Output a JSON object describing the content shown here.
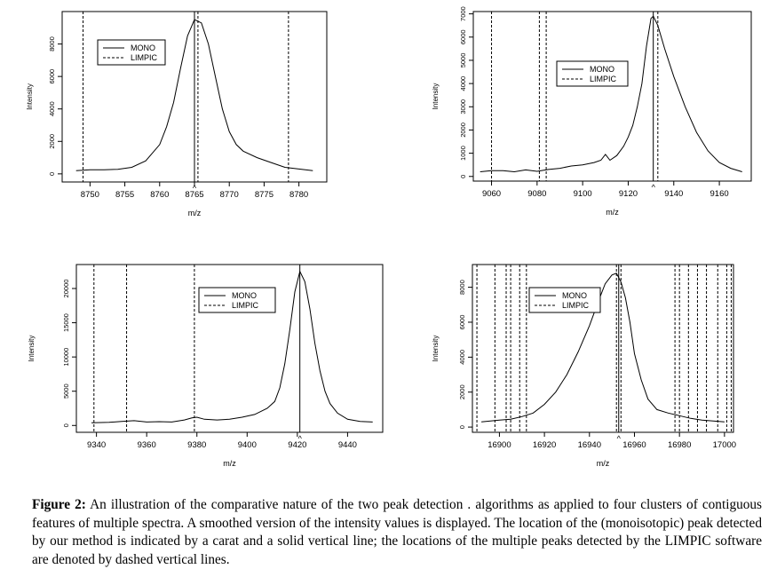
{
  "caption": {
    "label": "Figure 2:",
    "text": "An illustration of the comparative nature of the two peak detection . algorithms as applied to four clusters of contiguous features of multiple spectra. A smoothed version of the intensity values is displayed. The location of the (monoisotopic) peak detected by our method is indicated by a carat and a solid vertical line; the locations of the multiple peaks detected by the LIMPIC software are denoted by dashed vertical lines."
  },
  "chart_data": [
    {
      "type": "line",
      "xlabel": "m/z",
      "ylabel": "Intensity",
      "xlim": [
        8746,
        8784
      ],
      "ylim": [
        -500,
        10000
      ],
      "xticks": [
        8750,
        8755,
        8760,
        8765,
        8770,
        8775,
        8780
      ],
      "yticks": [
        0,
        2000,
        4000,
        6000,
        8000
      ],
      "legend": {
        "position": "top-left",
        "entries": [
          "MONO",
          "LIMPIC"
        ]
      },
      "mono_peak": 8765,
      "limpic_peaks": [
        8749,
        8765.5,
        8778.5
      ],
      "caret_label": "^",
      "series": [
        {
          "name": "MONO",
          "x": [
            8748,
            8750,
            8752,
            8754,
            8756,
            8758,
            8760,
            8761,
            8762,
            8763,
            8764,
            8765,
            8766,
            8767,
            8768,
            8769,
            8770,
            8771,
            8772,
            8774,
            8776,
            8778,
            8780,
            8782
          ],
          "y": [
            200,
            250,
            250,
            280,
            400,
            800,
            1800,
            2900,
            4400,
            6500,
            8500,
            9500,
            9300,
            8000,
            6000,
            4000,
            2600,
            1800,
            1400,
            1000,
            700,
            400,
            300,
            200
          ]
        }
      ]
    },
    {
      "type": "line",
      "xlabel": "m/z",
      "ylabel": "Intensity",
      "xlim": [
        9052,
        9174
      ],
      "ylim": [
        -200,
        7100
      ],
      "xticks": [
        9060,
        9080,
        9100,
        9120,
        9140,
        9160
      ],
      "yticks": [
        0,
        1000,
        2000,
        3000,
        4000,
        5000,
        6000,
        7000
      ],
      "legend": {
        "position": "top-center",
        "entries": [
          "MONO",
          "LIMPIC"
        ]
      },
      "mono_peak": 9131,
      "limpic_peaks": [
        9060,
        9081,
        9084,
        9133
      ],
      "caret_label": "^",
      "series": [
        {
          "name": "MONO",
          "x": [
            9055,
            9060,
            9065,
            9070,
            9075,
            9080,
            9085,
            9090,
            9095,
            9100,
            9105,
            9108,
            9110,
            9112,
            9115,
            9118,
            9120,
            9122,
            9124,
            9126,
            9128,
            9130,
            9131,
            9133,
            9136,
            9140,
            9145,
            9150,
            9155,
            9160,
            9165,
            9170
          ],
          "y": [
            200,
            250,
            250,
            200,
            280,
            220,
            300,
            350,
            450,
            500,
            600,
            700,
            950,
            700,
            900,
            1300,
            1700,
            2200,
            3000,
            4000,
            5600,
            6800,
            6900,
            6500,
            5500,
            4300,
            3000,
            1900,
            1100,
            600,
            350,
            200
          ]
        }
      ]
    },
    {
      "type": "line",
      "xlabel": "m/z",
      "ylabel": "Intensity",
      "xlim": [
        9332,
        9454
      ],
      "ylim": [
        -1000,
        23500
      ],
      "xticks": [
        9340,
        9360,
        9380,
        9400,
        9420,
        9440
      ],
      "yticks": [
        0,
        5000,
        10000,
        15000,
        20000
      ],
      "legend": {
        "position": "top-center",
        "entries": [
          "MONO",
          "LIMPIC"
        ]
      },
      "mono_peak": 9421,
      "limpic_peaks": [
        9339,
        9352,
        9379
      ],
      "caret_label": "^",
      "series": [
        {
          "name": "MONO",
          "x": [
            9338,
            9345,
            9350,
            9355,
            9360,
            9365,
            9370,
            9375,
            9378,
            9380,
            9383,
            9388,
            9393,
            9398,
            9403,
            9408,
            9411,
            9413,
            9415,
            9417,
            9419,
            9421,
            9423,
            9425,
            9427,
            9429,
            9431,
            9433,
            9436,
            9440,
            9445,
            9450
          ],
          "y": [
            400,
            450,
            600,
            700,
            500,
            550,
            500,
            800,
            1100,
            1200,
            900,
            800,
            900,
            1200,
            1600,
            2500,
            3500,
            5500,
            9000,
            14000,
            19500,
            22500,
            21000,
            17000,
            12000,
            8000,
            5000,
            3200,
            1800,
            900,
            600,
            500
          ]
        }
      ]
    },
    {
      "type": "line",
      "xlabel": "m/z",
      "ylabel": "Intensity",
      "xlim": [
        16888,
        17004
      ],
      "ylim": [
        -300,
        9300
      ],
      "xticks": [
        16900,
        16920,
        16940,
        16960,
        16980,
        17000
      ],
      "yticks": [
        0,
        2000,
        4000,
        6000,
        8000
      ],
      "legend": {
        "position": "top-left",
        "entries": [
          "MONO",
          "LIMPIC"
        ]
      },
      "mono_peak": 16953,
      "limpic_peaks": [
        16890,
        16898,
        16903,
        16905,
        16909,
        16912,
        16952,
        16954,
        16978,
        16980,
        16984,
        16988,
        16992,
        16997,
        17001,
        17003
      ],
      "caret_label": "^",
      "series": [
        {
          "name": "MONO",
          "x": [
            16892,
            16896,
            16900,
            16905,
            16910,
            16915,
            16920,
            16925,
            16930,
            16935,
            16940,
            16944,
            16947,
            16950,
            16952,
            16954,
            16956,
            16958,
            16960,
            16963,
            16966,
            16970,
            16975,
            16980,
            16985,
            16990,
            16995,
            17000
          ],
          "y": [
            300,
            350,
            400,
            450,
            600,
            800,
            1300,
            2000,
            3000,
            4300,
            5800,
            7200,
            8200,
            8700,
            8800,
            8300,
            7400,
            6000,
            4200,
            2700,
            1600,
            1000,
            800,
            650,
            500,
            400,
            350,
            300
          ]
        }
      ]
    }
  ]
}
